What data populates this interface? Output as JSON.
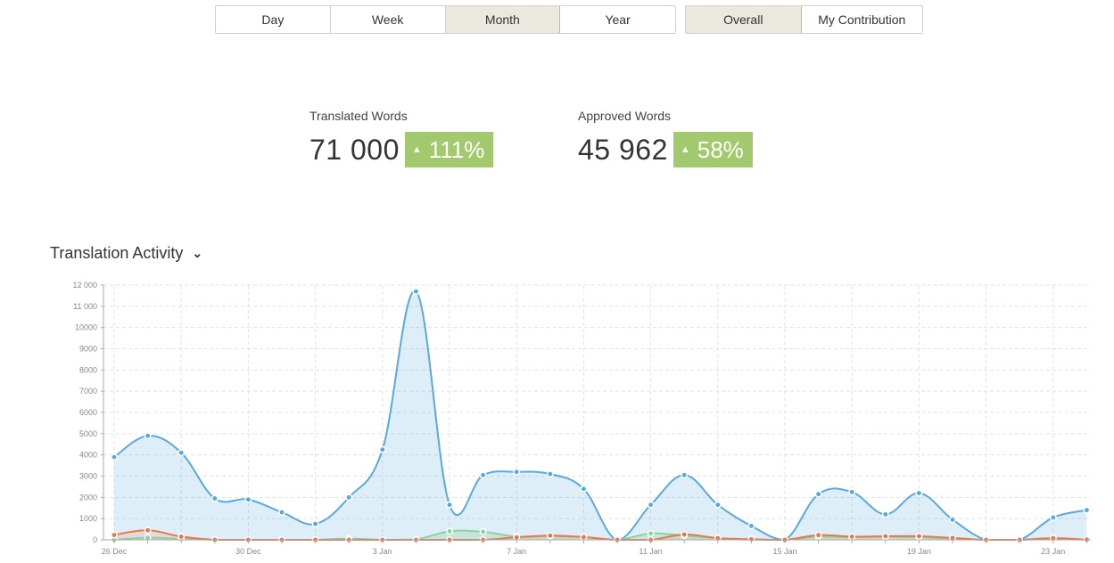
{
  "period_tabs": [
    {
      "label": "Day",
      "active": false
    },
    {
      "label": "Week",
      "active": false
    },
    {
      "label": "Month",
      "active": true
    },
    {
      "label": "Year",
      "active": false
    }
  ],
  "scope_tabs": [
    {
      "label": "Overall",
      "active": true
    },
    {
      "label": "My Contribution",
      "active": false
    }
  ],
  "stats": {
    "translated": {
      "label": "Translated Words",
      "value": "71 000",
      "change": "111%"
    },
    "approved": {
      "label": "Approved Words",
      "value": "45 962",
      "change": "58%"
    }
  },
  "chart_section": {
    "title": "Translation Activity"
  },
  "colors": {
    "translated": "#5aa9dc",
    "approved": "#e8774a",
    "third": "#8fd19e",
    "badge": "#a3c96e"
  },
  "chart_data": {
    "type": "area",
    "title": "",
    "xlabel": "",
    "ylabel": "",
    "ylim": [
      0,
      12000
    ],
    "grid": true,
    "y_ticks": [
      "0",
      "1000",
      "2000",
      "3000",
      "4000",
      "5000",
      "6000",
      "7000",
      "8000",
      "9000",
      "10000",
      "11 000",
      "12 000"
    ],
    "x_tick_labels": [
      "26 Dec",
      "30 Dec",
      "3 Jan",
      "7 Jan",
      "11 Jan",
      "15 Jan",
      "19 Jan",
      "23 Jan"
    ],
    "x": [
      "26 Dec",
      "27 Dec",
      "28 Dec",
      "29 Dec",
      "30 Dec",
      "31 Dec",
      "1 Jan",
      "2 Jan",
      "3 Jan",
      "4 Jan",
      "5 Jan",
      "6 Jan",
      "7 Jan",
      "8 Jan",
      "9 Jan",
      "10 Jan",
      "11 Jan",
      "12 Jan",
      "13 Jan",
      "14 Jan",
      "15 Jan",
      "16 Jan",
      "17 Jan",
      "18 Jan",
      "19 Jan",
      "20 Jan",
      "21 Jan",
      "22 Jan",
      "23 Jan",
      "24 Jan"
    ],
    "series": [
      {
        "values": [
          3900,
          4900,
          4100,
          1950,
          1900,
          1300,
          750,
          2000,
          4250,
          11700,
          1650,
          3050,
          3200,
          3100,
          2400,
          0,
          1650,
          3050,
          1650,
          650,
          0,
          2150,
          2250,
          1200,
          2200,
          950,
          0,
          0,
          1050,
          1400
        ]
      },
      {
        "values": [
          230,
          450,
          150,
          0,
          0,
          0,
          0,
          0,
          0,
          0,
          0,
          0,
          120,
          200,
          130,
          0,
          0,
          250,
          80,
          30,
          0,
          220,
          150,
          170,
          170,
          90,
          0,
          0,
          80,
          10
        ]
      },
      {
        "values": [
          0,
          100,
          50,
          0,
          0,
          0,
          0,
          60,
          0,
          20,
          400,
          380,
          150,
          180,
          120,
          0,
          300,
          200,
          80,
          0,
          0,
          150,
          130,
          150,
          120,
          60,
          0,
          0,
          40,
          0
        ]
      }
    ]
  }
}
